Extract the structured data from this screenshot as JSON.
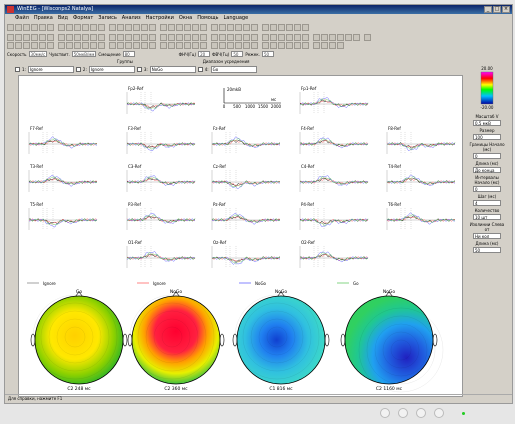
{
  "window": {
    "title": "WinEEG - [Wisconps2 Natalya]",
    "controls": [
      "_",
      "□",
      "×"
    ]
  },
  "menu": [
    "Файл",
    "Правка",
    "Вид",
    "Формат",
    "Запись",
    "Анализ",
    "Настройки",
    "Окна",
    "Помощь",
    "Language"
  ],
  "toolbar3": {
    "speed_label": "Скорость",
    "speed_value": "30мм/с",
    "sens_label": "Чувствит.",
    "sens_value": "50мкВ/мм",
    "shift_label": "Смещение",
    "shift_value": "80",
    "f1_label": "ФНЧ(Гц)",
    "f1_value": "20",
    "f2_label": "ФВЧ(Гц)",
    "f2_value": "50",
    "f3_label": "Режек.",
    "f3_value": "50"
  },
  "row4": {
    "groups": "Группы",
    "range": "Диапазон усреднения"
  },
  "selectors": [
    {
      "num": "1:",
      "value": "Ignore"
    },
    {
      "num": "2:",
      "value": "Ignore"
    },
    {
      "num": "3:",
      "value": "NoGo"
    },
    {
      "num": "4:",
      "value": "Go"
    }
  ],
  "scale": {
    "y_label": "mkB",
    "y_value": "20",
    "x_label": "мс",
    "ticks": [
      "0",
      "500",
      "1000",
      "1500",
      "2000"
    ]
  },
  "channels": [
    "Fp2-Ref",
    "Fp1-Ref",
    "F7-Ref",
    "F3-Ref",
    "Fz-Ref",
    "F4-Ref",
    "F8-Ref",
    "T3-Ref",
    "C3-Ref",
    "Cz-Ref",
    "C4-Ref",
    "T4-Ref",
    "T5-Ref",
    "P3-Ref",
    "Pz-Ref",
    "P4-Ref",
    "T6-Ref",
    "O1-Ref",
    "Oz-Ref",
    "O2-Ref"
  ],
  "legend": [
    {
      "name": "Ignore",
      "color": "#888888"
    },
    {
      "name": "Ignore",
      "color": "#ff6666"
    },
    {
      "name": "NoGo",
      "color": "#6666ff"
    },
    {
      "name": "Go",
      "color": "#66cc66"
    }
  ],
  "maps": [
    {
      "title": "Go",
      "caption": "C2 248 мс"
    },
    {
      "title": "NoGo",
      "caption": "C2 360 мс"
    },
    {
      "title": "NoGo",
      "caption": "C1 816 мс"
    },
    {
      "title": "NoGo",
      "caption": "C2 1160 мс"
    }
  ],
  "colorbar": {
    "top": "20.00",
    "bottom": "-20.00"
  },
  "side": [
    {
      "label": "Масштаб V",
      "value": "0,5 мкВ"
    },
    {
      "label": "Размер",
      "value": "100"
    },
    {
      "label": "Границы Начало (мс)",
      "value": "0"
    },
    {
      "label": "Длина (мс)",
      "value": "До конца"
    },
    {
      "label": "Интервалы Начало (мс)",
      "value": "0"
    },
    {
      "label": "Шаг (мс)",
      "value": "4"
    },
    {
      "label": "Количество",
      "value": "10 шт"
    },
    {
      "label": "Изолинии Слева от",
      "value": "Ни кол"
    },
    {
      "label": "Длина (мс)",
      "value": "50"
    }
  ],
  "status": "Для справки, нажмите F1"
}
